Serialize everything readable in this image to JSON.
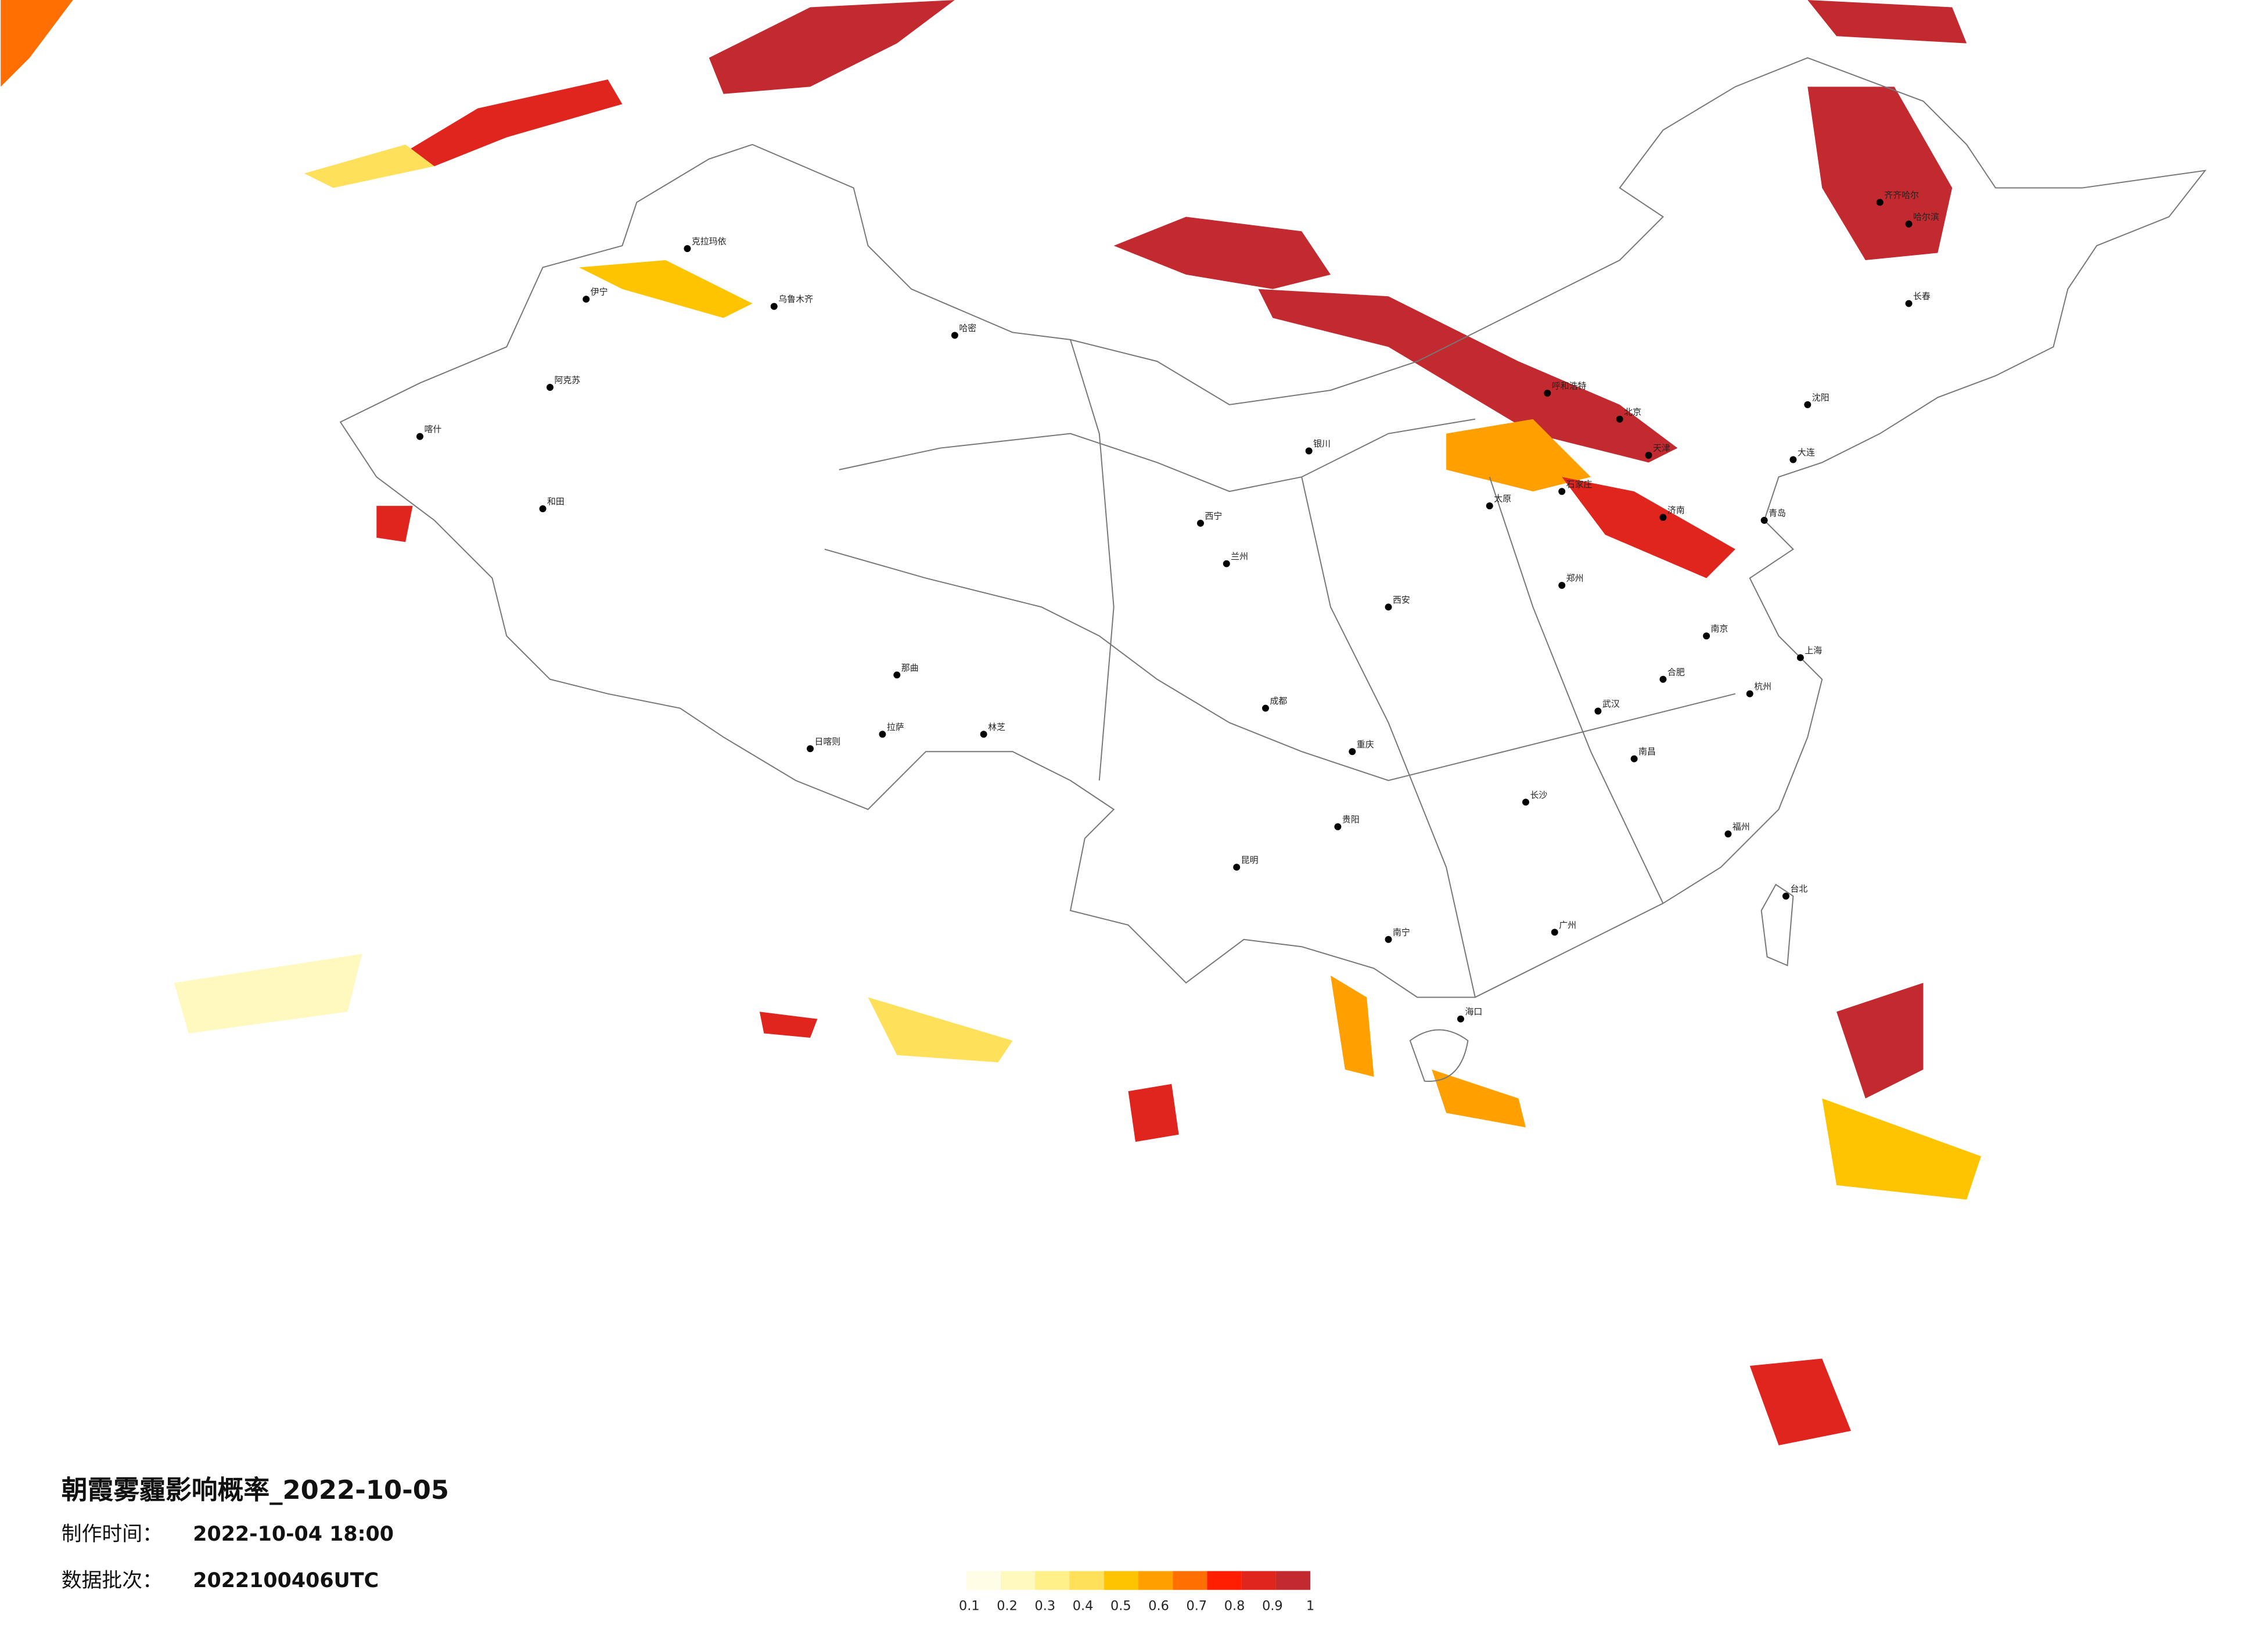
{
  "header": {
    "title": "朝霞雾霾影响概率_2022-10-05",
    "made_label": "制作时间：",
    "made_value": "2022-10-04 18:00",
    "batch_label": "数据批次：",
    "batch_value": "2022100406UTC"
  },
  "legend": {
    "colors": [
      "#fffde6",
      "#fff8bf",
      "#fff08a",
      "#ffe05a",
      "#ffc400",
      "#ffa000",
      "#ff6e00",
      "#ff1e00",
      "#e0241e",
      "#c22a30"
    ],
    "labels": [
      "0.1",
      "0.2",
      "0.3",
      "0.4",
      "0.5",
      "0.6",
      "0.7",
      "0.8",
      "0.9",
      "1"
    ]
  },
  "cities": [
    "乌鲁木齐",
    "哈密",
    "伊宁",
    "阿克苏",
    "和田",
    "喀什",
    "克拉玛依",
    "拉萨",
    "日喀则",
    "林芝",
    "那曲",
    "西宁",
    "兰州",
    "银川",
    "呼和浩特",
    "北京",
    "天津",
    "石家庄",
    "太原",
    "济南",
    "郑州",
    "西安",
    "成都",
    "重庆",
    "贵阳",
    "昆明",
    "南宁",
    "广州",
    "长沙",
    "武汉",
    "南昌",
    "福州",
    "杭州",
    "南京",
    "合肥",
    "上海",
    "沈阳",
    "长春",
    "哈尔滨",
    "海口",
    "台北",
    "齐齐哈尔",
    "大连",
    "青岛"
  ]
}
